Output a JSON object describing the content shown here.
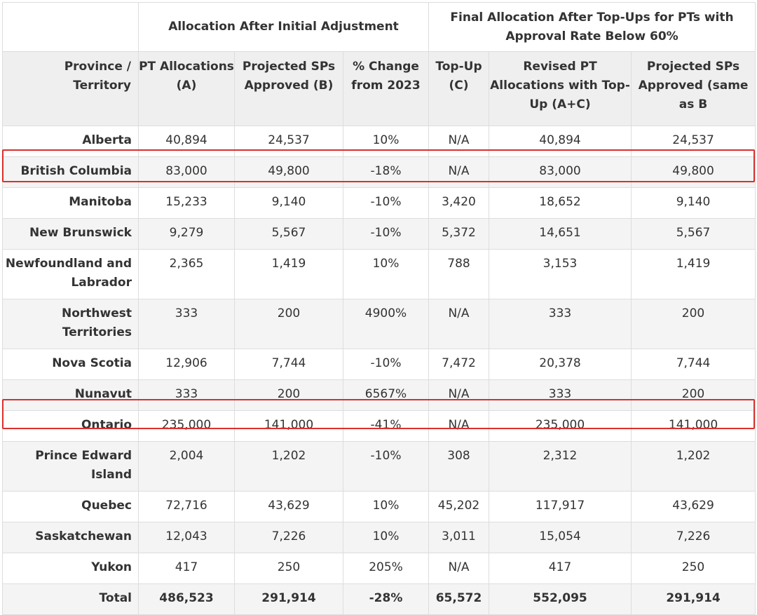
{
  "header": {
    "group_blank": "",
    "group1": "Allocation After Initial Adjustment",
    "group2": "Final Allocation After Top-Ups for PTs with Approval Rate Below 60%",
    "columns": [
      "Province / Territory",
      "PT Allocations (A)",
      "Projected SPs Approved (B)",
      "% Change from 2023",
      "Top-Up (C)",
      "Revised PT Allocations with Top-Up (A+C)",
      "Projected SPs Approved (same as B"
    ]
  },
  "rows": [
    {
      "name": "Alberta",
      "a": "40,894",
      "b": "24,537",
      "change": "10%",
      "c": "N/A",
      "ac": "40,894",
      "same": "24,537"
    },
    {
      "name": "British Columbia",
      "a": "83,000",
      "b": "49,800",
      "change": "-18%",
      "c": "N/A",
      "ac": "83,000",
      "same": "49,800"
    },
    {
      "name": "Manitoba",
      "a": "15,233",
      "b": "9,140",
      "change": "-10%",
      "c": "3,420",
      "ac": "18,652",
      "same": "9,140"
    },
    {
      "name": "New Brunswick",
      "a": "9,279",
      "b": "5,567",
      "change": "-10%",
      "c": "5,372",
      "ac": "14,651",
      "same": "5,567"
    },
    {
      "name": "Newfoundland and Labrador",
      "a": "2,365",
      "b": "1,419",
      "change": "10%",
      "c": "788",
      "ac": "3,153",
      "same": "1,419"
    },
    {
      "name": "Northwest Territories",
      "a": "333",
      "b": "200",
      "change": "4900%",
      "c": "N/A",
      "ac": "333",
      "same": "200"
    },
    {
      "name": "Nova Scotia",
      "a": "12,906",
      "b": "7,744",
      "change": "-10%",
      "c": "7,472",
      "ac": "20,378",
      "same": "7,744"
    },
    {
      "name": "Nunavut",
      "a": "333",
      "b": "200",
      "change": "6567%",
      "c": "N/A",
      "ac": "333",
      "same": "200"
    },
    {
      "name": "Ontario",
      "a": "235,000",
      "b": "141,000",
      "change": "-41%",
      "c": "N/A",
      "ac": "235,000",
      "same": "141,000"
    },
    {
      "name": "Prince Edward Island",
      "a": "2,004",
      "b": "1,202",
      "change": "-10%",
      "c": "308",
      "ac": "2,312",
      "same": "1,202"
    },
    {
      "name": "Quebec",
      "a": "72,716",
      "b": "43,629",
      "change": "10%",
      "c": "45,202",
      "ac": "117,917",
      "same": "43,629"
    },
    {
      "name": "Saskatchewan",
      "a": "12,043",
      "b": "7,226",
      "change": "10%",
      "c": "3,011",
      "ac": "15,054",
      "same": "7,226"
    },
    {
      "name": "Yukon",
      "a": "417",
      "b": "250",
      "change": "205%",
      "c": "N/A",
      "ac": "417",
      "same": "250"
    }
  ],
  "total": {
    "name": "Total",
    "a": "486,523",
    "b": "291,914",
    "change": "-28%",
    "c": "65,572",
    "ac": "552,095",
    "same": "291,914"
  },
  "highlight_color": "#d9302c"
}
